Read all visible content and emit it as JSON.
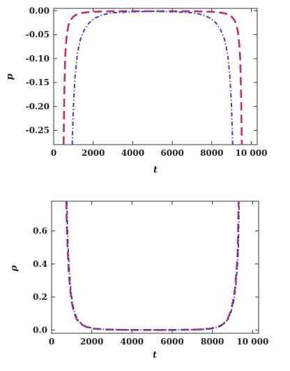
{
  "chart_data": [
    {
      "type": "line",
      "xlabel": "t",
      "ylabel": "p",
      "xlim": [
        0,
        10300
      ],
      "ylim": [
        -0.28,
        0.005
      ],
      "xticks": [
        0,
        2000,
        4000,
        6000,
        8000,
        10000
      ],
      "xtick_labels": [
        "0",
        "2000",
        "4000",
        "6000",
        "8000",
        "10 000"
      ],
      "yticks": [
        0.0,
        -0.05,
        -0.1,
        -0.15,
        -0.2,
        -0.25
      ],
      "ytick_labels": [
        "0.00",
        "-0.05",
        "-0.10",
        "-0.15",
        "-0.20",
        "-0.25"
      ],
      "grid": false,
      "series": [
        {
          "style": "dashed",
          "color": "#c8325a",
          "x": [
            500,
            540,
            580,
            620,
            680,
            750,
            850,
            1000,
            1200,
            1500,
            2000,
            3000,
            5000,
            7000,
            8000,
            8500,
            8800,
            9000,
            9150,
            9250,
            9330,
            9390,
            9440,
            9480,
            9520
          ],
          "y": [
            -0.28,
            -0.17,
            -0.1,
            -0.07,
            -0.045,
            -0.03,
            -0.02,
            -0.012,
            -0.007,
            -0.004,
            -0.002,
            -0.001,
            -0.001,
            -0.001,
            -0.002,
            -0.004,
            -0.007,
            -0.012,
            -0.02,
            -0.03,
            -0.045,
            -0.07,
            -0.1,
            -0.17,
            -0.28
          ]
        },
        {
          "style": "dash-dot",
          "color": "#3b3bd6",
          "x": [
            940,
            1000,
            1080,
            1200,
            1350,
            1550,
            1800,
            2100,
            2500,
            3000,
            4000,
            5000,
            6000,
            7000,
            7500,
            7900,
            8200,
            8450,
            8650,
            8800,
            8920,
            9000,
            9060
          ],
          "y": [
            -0.28,
            -0.2,
            -0.14,
            -0.09,
            -0.06,
            -0.04,
            -0.025,
            -0.015,
            -0.008,
            -0.004,
            -0.002,
            -0.001,
            -0.002,
            -0.004,
            -0.008,
            -0.015,
            -0.025,
            -0.04,
            -0.06,
            -0.09,
            -0.14,
            -0.2,
            -0.28
          ]
        }
      ]
    },
    {
      "type": "line",
      "xlabel": "t",
      "ylabel": "ρ",
      "xlim": [
        0,
        10300
      ],
      "ylim": [
        -0.02,
        0.78
      ],
      "xticks": [
        0,
        2000,
        4000,
        6000,
        8000,
        10000
      ],
      "xtick_labels": [
        "0",
        "2000",
        "4000",
        "6000",
        "8000",
        "10 000"
      ],
      "yticks": [
        0.0,
        0.2,
        0.4,
        0.6
      ],
      "ytick_labels": [
        "0.0",
        "0.2",
        "0.4",
        "0.6"
      ],
      "grid": false,
      "series": [
        {
          "style": "dashed",
          "color": "#c8325a",
          "x": [
            730,
            760,
            800,
            850,
            920,
            1000,
            1100,
            1250,
            1450,
            1700,
            2100,
            2700,
            4000,
            6000,
            7300,
            7900,
            8300,
            8550,
            8750,
            8900,
            9020,
            9120,
            9200,
            9260,
            9300
          ],
          "y": [
            0.78,
            0.62,
            0.48,
            0.36,
            0.25,
            0.17,
            0.11,
            0.065,
            0.037,
            0.02,
            0.008,
            0.003,
            0.0,
            0.0,
            0.003,
            0.008,
            0.02,
            0.037,
            0.065,
            0.11,
            0.17,
            0.25,
            0.36,
            0.48,
            0.78
          ]
        },
        {
          "style": "dash-dot",
          "color": "#3b3bd6",
          "x": [
            760,
            790,
            830,
            880,
            950,
            1030,
            1130,
            1280,
            1480,
            1730,
            2130,
            2730,
            4000,
            6000,
            7330,
            7930,
            8330,
            8580,
            8780,
            8930,
            9050,
            9150,
            9230,
            9290,
            9330
          ],
          "y": [
            0.78,
            0.62,
            0.48,
            0.36,
            0.25,
            0.17,
            0.11,
            0.065,
            0.037,
            0.02,
            0.008,
            0.003,
            0.0,
            0.0,
            0.003,
            0.008,
            0.02,
            0.037,
            0.065,
            0.11,
            0.17,
            0.25,
            0.36,
            0.48,
            0.78
          ]
        }
      ]
    }
  ]
}
